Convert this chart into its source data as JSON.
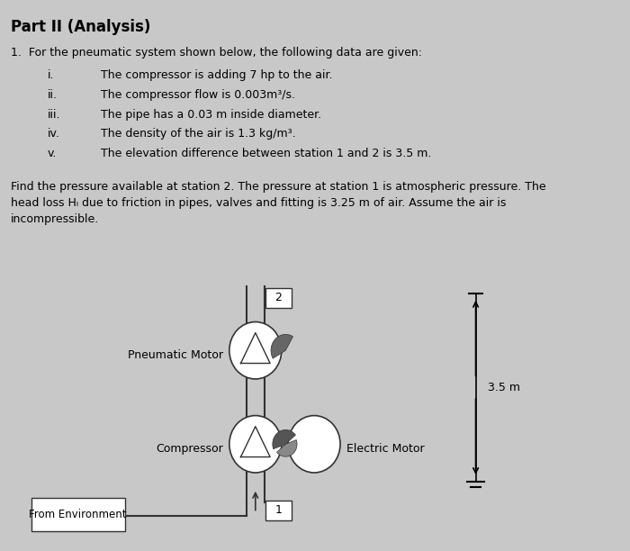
{
  "background_color": "#c8c8c8",
  "title": "Part II (Analysis)",
  "title_fontsize": 12,
  "problem_text": "1.  For the pneumatic system shown below, the following data are given:",
  "items": [
    [
      "i.",
      "The compressor is adding 7 hp to the air."
    ],
    [
      "ii.",
      "The compressor flow is 0.003m³/s."
    ],
    [
      "iii.",
      "The pipe has a 0.03 m inside diameter."
    ],
    [
      "iv.",
      "The density of the air is 1.3 kg/m³."
    ],
    [
      "v.",
      "The elevation difference between station 1 and 2 is 3.5 m."
    ]
  ],
  "find_line1": "Find the pressure available at station 2. The pressure at station 1 is atmospheric pressure. The",
  "find_line2": "head loss Hₗ due to friction in pipes, valves and fitting is 3.25 m of air. Assume the air is",
  "find_line3": "incompressible.",
  "label_pneumatic": "Pneumatic Motor",
  "label_compressor": "Compressor",
  "label_electric": "Electric Motor",
  "label_env": "From Environment",
  "label_station1": "1",
  "label_station2": "2",
  "label_35m": "3.5 m"
}
